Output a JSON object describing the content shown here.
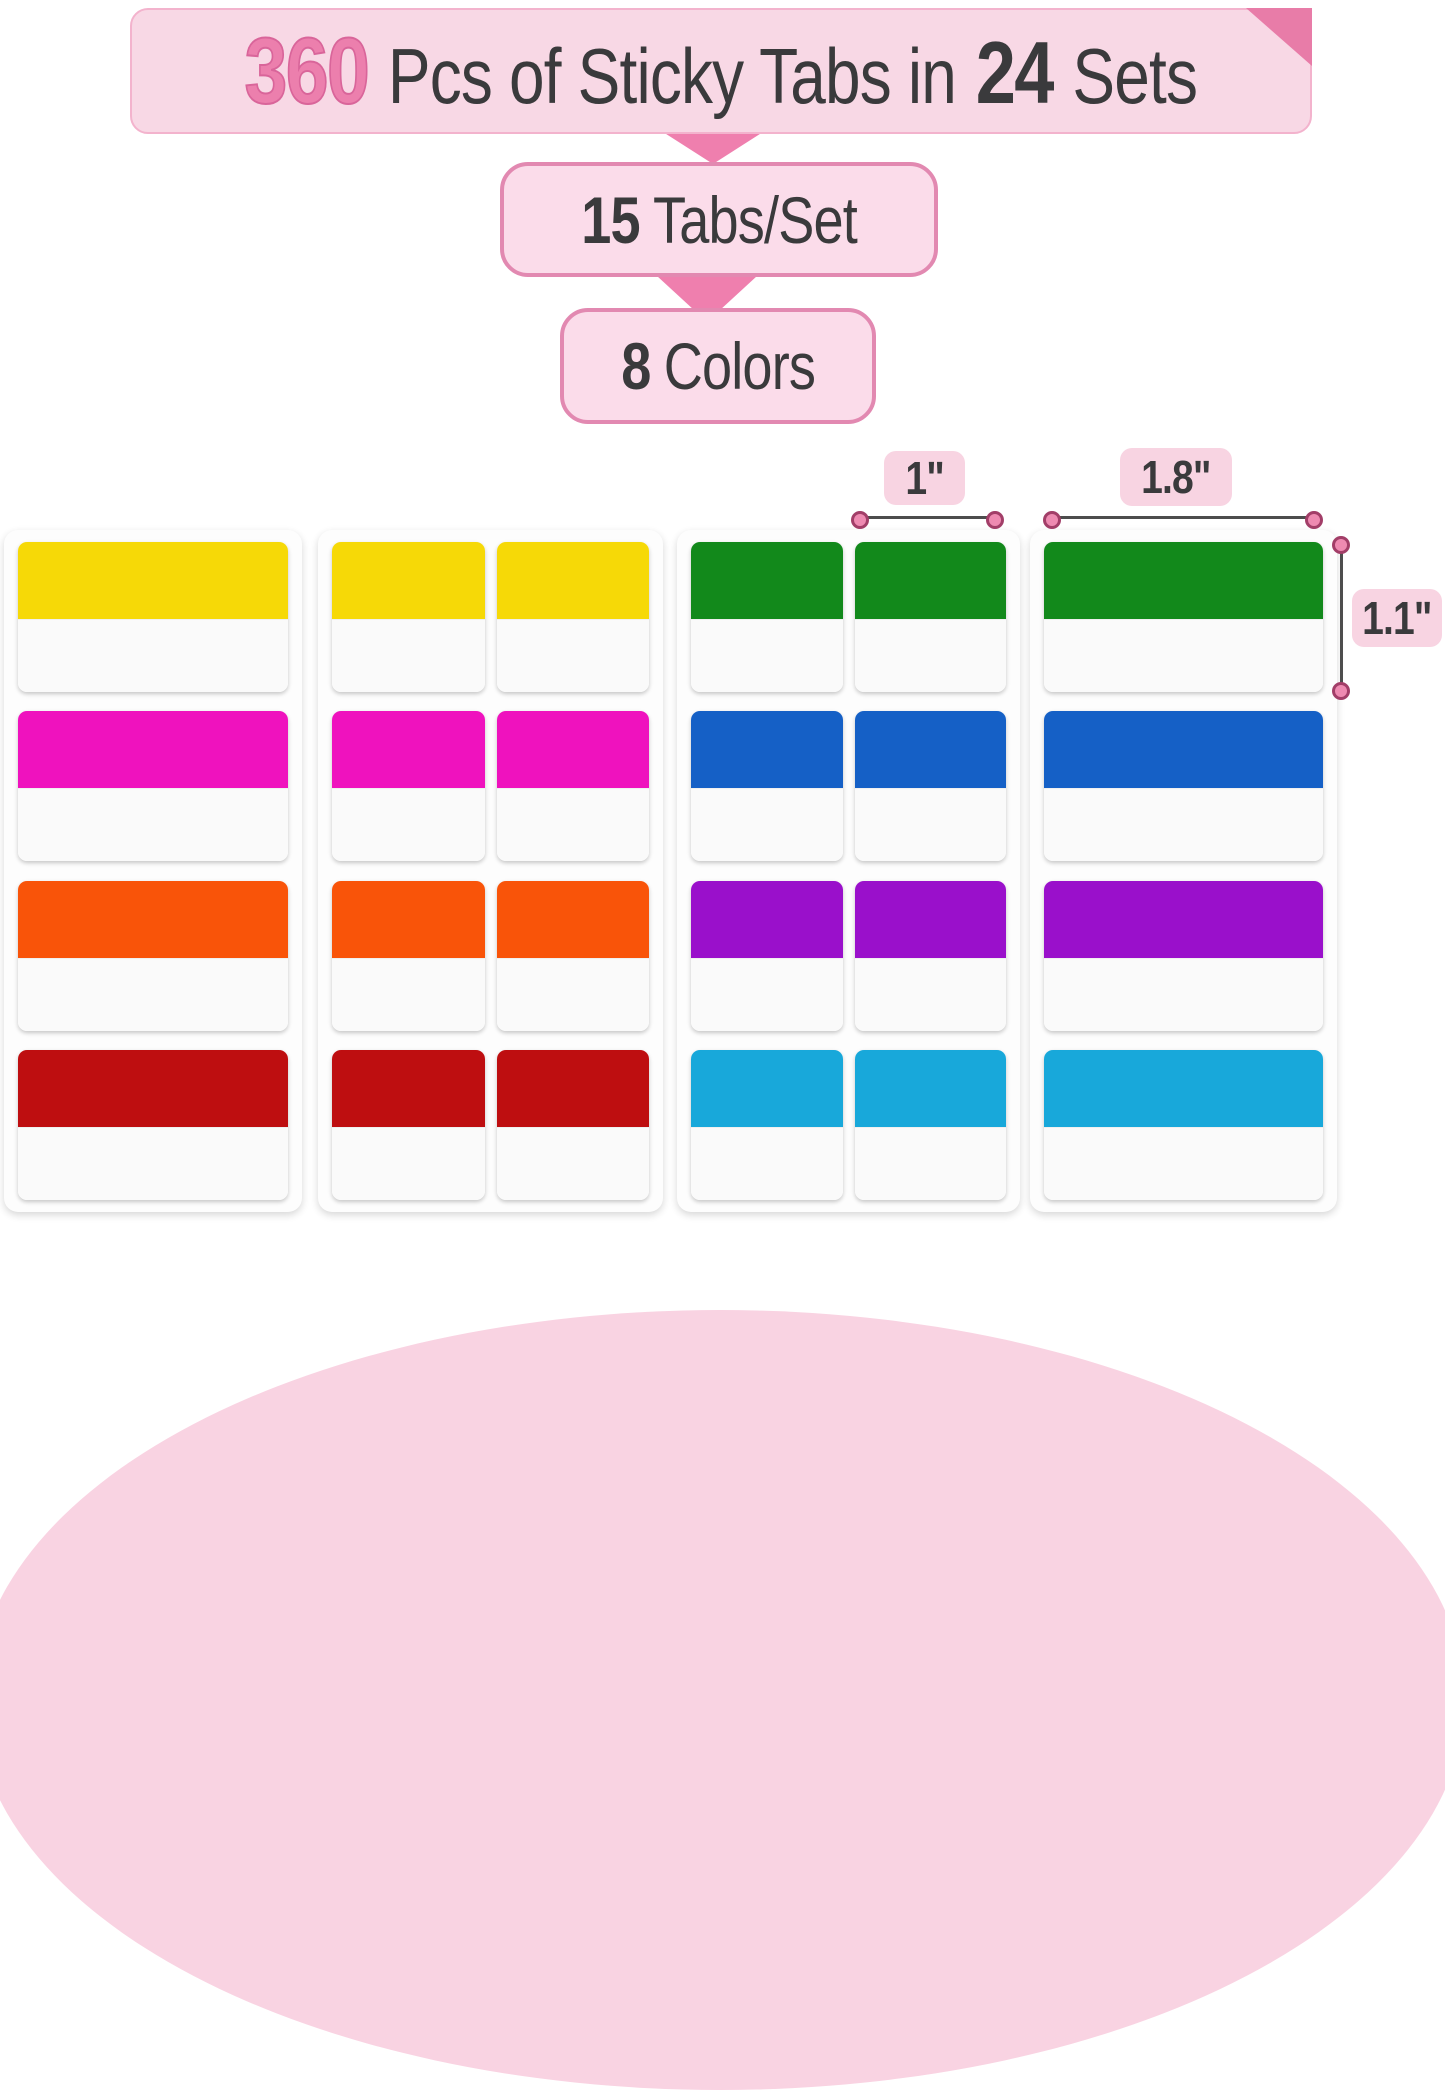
{
  "banner": {
    "count": "360",
    "label_mid": "Pcs of Sticky Tabs in",
    "sets_count": "24",
    "label_end": "Sets"
  },
  "tabs_per_set": {
    "count": "15",
    "label": "Tabs/Set"
  },
  "colors_badge": {
    "count": "8",
    "label": "Colors"
  },
  "dimensions": {
    "small_width": "1\"",
    "large_width": "1.8\"",
    "tab_height": "1.1\""
  },
  "palette": {
    "yellow": "#F6D907",
    "magenta": "#EF12BE",
    "orange": "#F95409",
    "red": "#BE0E10",
    "green": "#12891B",
    "blue": "#1560C6",
    "purple": "#9A10CB",
    "cyan": "#18A8DA",
    "banner_bg": "#F8D8E5",
    "banner_fold": "#E87CA8",
    "badge_bg": "#FBDCEA",
    "badge_border": "#E289B1",
    "arrow_pink": "#EF7FAE",
    "count_pink": "#EC7FAD",
    "text_dark": "#3A3A3C",
    "dim_line": "#4D4D4D",
    "dim_dot_fill": "#EE8AB1",
    "dim_dot_border": "#A23E68",
    "sheet_white": "#FDFDFD",
    "tab_body_white": "#FAFAFA",
    "semicircle_pink": "#F9D3E2"
  },
  "panels": [
    {
      "id": "sheet-wide-left",
      "layout": "wide",
      "tab_colors": [
        "yellow",
        "magenta",
        "orange",
        "red"
      ]
    },
    {
      "id": "sheet-grid-left",
      "layout": "two-col",
      "tab_colors": [
        "yellow",
        "magenta",
        "orange",
        "red"
      ]
    },
    {
      "id": "sheet-grid-right",
      "layout": "two-col",
      "tab_colors": [
        "green",
        "blue",
        "purple",
        "cyan"
      ]
    },
    {
      "id": "sheet-wide-right",
      "layout": "wide",
      "tab_colors": [
        "green",
        "blue",
        "purple",
        "cyan"
      ]
    }
  ]
}
